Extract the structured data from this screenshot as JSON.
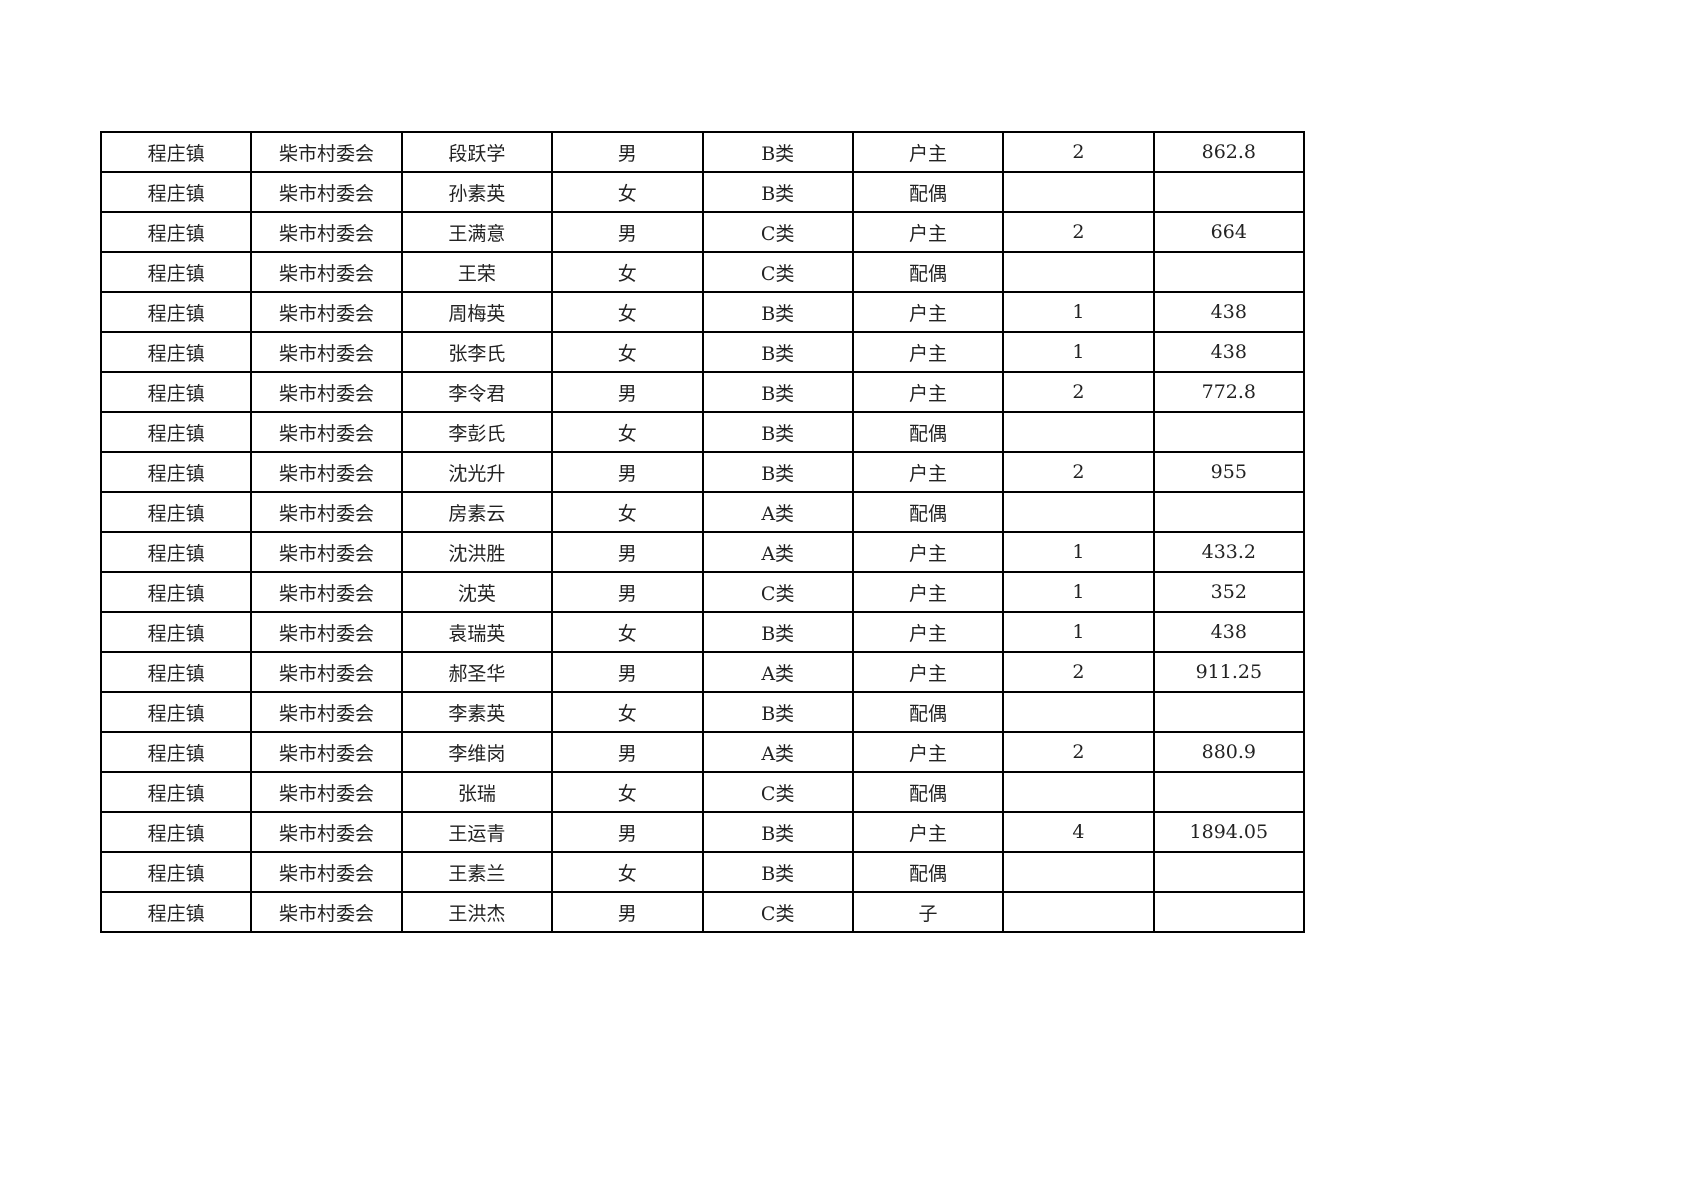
{
  "rows": [
    [
      "程庄镇",
      "柴市村委会",
      "段跃学",
      "男",
      "B类",
      "户主",
      "2",
      "862.8"
    ],
    [
      "程庄镇",
      "柴市村委会",
      "孙素英",
      "女",
      "B类",
      "配偶",
      "",
      ""
    ],
    [
      "程庄镇",
      "柴市村委会",
      "王满意",
      "男",
      "C类",
      "户主",
      "2",
      "664"
    ],
    [
      "程庄镇",
      "柴市村委会",
      "王荣",
      "女",
      "C类",
      "配偶",
      "",
      ""
    ],
    [
      "程庄镇",
      "柴市村委会",
      "周梅英",
      "女",
      "B类",
      "户主",
      "1",
      "438"
    ],
    [
      "程庄镇",
      "柴市村委会",
      "张李氏",
      "女",
      "B类",
      "户主",
      "1",
      "438"
    ],
    [
      "程庄镇",
      "柴市村委会",
      "李令君",
      "男",
      "B类",
      "户主",
      "2",
      "772.8"
    ],
    [
      "程庄镇",
      "柴市村委会",
      "李彭氏",
      "女",
      "B类",
      "配偶",
      "",
      ""
    ],
    [
      "程庄镇",
      "柴市村委会",
      "沈光升",
      "男",
      "B类",
      "户主",
      "2",
      "955"
    ],
    [
      "程庄镇",
      "柴市村委会",
      "房素云",
      "女",
      "A类",
      "配偶",
      "",
      ""
    ],
    [
      "程庄镇",
      "柴市村委会",
      "沈洪胜",
      "男",
      "A类",
      "户主",
      "1",
      "433.2"
    ],
    [
      "程庄镇",
      "柴市村委会",
      "沈英",
      "男",
      "C类",
      "户主",
      "1",
      "352"
    ],
    [
      "程庄镇",
      "柴市村委会",
      "袁瑞英",
      "女",
      "B类",
      "户主",
      "1",
      "438"
    ],
    [
      "程庄镇",
      "柴市村委会",
      "郝圣华",
      "男",
      "A类",
      "户主",
      "2",
      "911.25"
    ],
    [
      "程庄镇",
      "柴市村委会",
      "李素英",
      "女",
      "B类",
      "配偶",
      "",
      ""
    ],
    [
      "程庄镇",
      "柴市村委会",
      "李维岗",
      "男",
      "A类",
      "户主",
      "2",
      "880.9"
    ],
    [
      "程庄镇",
      "柴市村委会",
      "张瑞",
      "女",
      "C类",
      "配偶",
      "",
      ""
    ],
    [
      "程庄镇",
      "柴市村委会",
      "王运青",
      "男",
      "B类",
      "户主",
      "4",
      "1894.05"
    ],
    [
      "程庄镇",
      "柴市村委会",
      "王素兰",
      "女",
      "B类",
      "配偶",
      "",
      ""
    ],
    [
      "程庄镇",
      "柴市村委会",
      "王洪杰",
      "男",
      "C类",
      "子",
      "",
      ""
    ]
  ]
}
